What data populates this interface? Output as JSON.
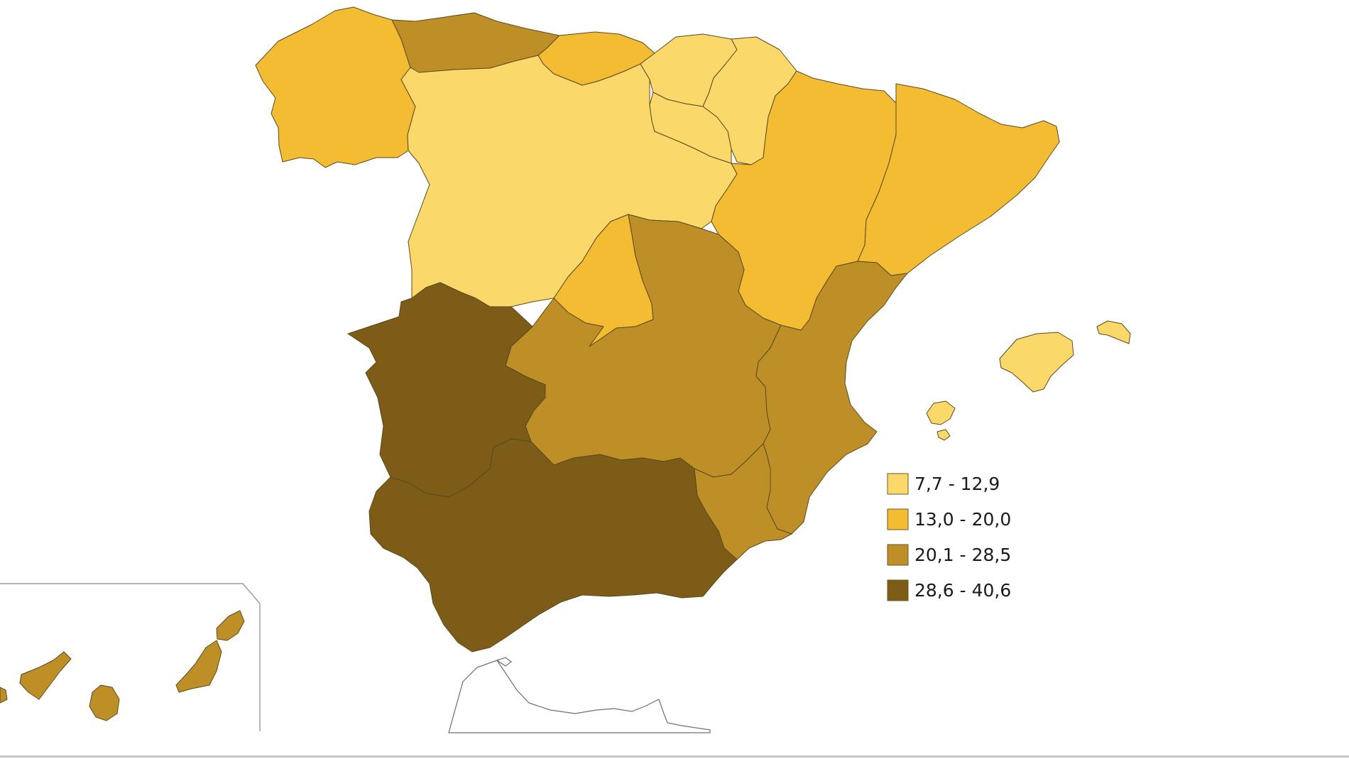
{
  "map": {
    "type": "choropleth",
    "colors": {
      "class1": "#fbd86a",
      "class2": "#f3bc33",
      "class3": "#be8f27",
      "class4": "#7c5c16"
    },
    "legend": {
      "items": [
        {
          "label": "7,7 - 12,9",
          "color": "#fbd86a"
        },
        {
          "label": "13,0 - 20,0",
          "color": "#f3bc33"
        },
        {
          "label": "20,1 - 28,5",
          "color": "#be8f27"
        },
        {
          "label": "28,6 - 40,6",
          "color": "#7c5c16"
        }
      ]
    }
  }
}
